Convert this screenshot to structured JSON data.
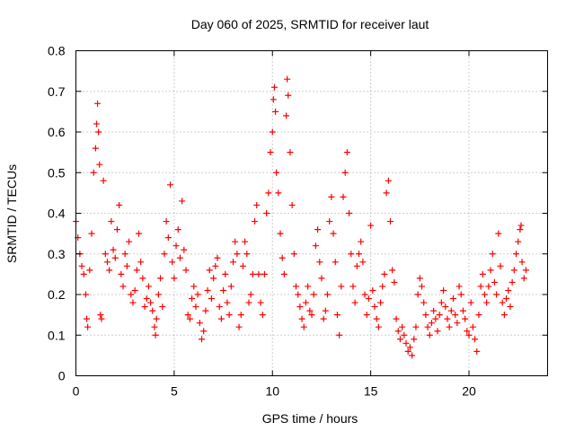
{
  "chart_data": {
    "type": "scatter",
    "title": "Day 060 of 2025, SRMTID for receiver laut",
    "xlabel": "GPS time / hours",
    "ylabel": "SRMTID / TECUs",
    "xlim": [
      0,
      24
    ],
    "ylim": [
      0,
      0.8
    ],
    "xticks": [
      0,
      5,
      10,
      15,
      20
    ],
    "xtick_labels": [
      "0",
      "5",
      "10",
      "15",
      "20"
    ],
    "yticks": [
      0,
      0.1,
      0.2,
      0.3,
      0.4,
      0.5,
      0.6,
      0.7,
      0.8
    ],
    "ytick_labels": [
      "0",
      "0.1",
      "0.2",
      "0.3",
      "0.4",
      "0.5",
      "0.6",
      "0.7",
      "0.8"
    ],
    "grid": true,
    "marker": "+",
    "color": "#ff0000",
    "series": [
      {
        "name": "SRMTID",
        "points": [
          [
            0.0,
            0.38
          ],
          [
            0.1,
            0.34
          ],
          [
            0.2,
            0.3
          ],
          [
            0.3,
            0.27
          ],
          [
            0.4,
            0.25
          ],
          [
            0.5,
            0.2
          ],
          [
            0.55,
            0.14
          ],
          [
            0.6,
            0.12
          ],
          [
            0.7,
            0.26
          ],
          [
            0.8,
            0.35
          ],
          [
            0.9,
            0.5
          ],
          [
            1.0,
            0.56
          ],
          [
            1.05,
            0.62
          ],
          [
            1.1,
            0.67
          ],
          [
            1.15,
            0.6
          ],
          [
            1.2,
            0.52
          ],
          [
            1.25,
            0.15
          ],
          [
            1.3,
            0.14
          ],
          [
            1.4,
            0.48
          ],
          [
            1.5,
            0.3
          ],
          [
            1.6,
            0.28
          ],
          [
            1.7,
            0.26
          ],
          [
            1.8,
            0.38
          ],
          [
            1.9,
            0.31
          ],
          [
            2.0,
            0.29
          ],
          [
            2.1,
            0.36
          ],
          [
            2.2,
            0.42
          ],
          [
            2.3,
            0.25
          ],
          [
            2.4,
            0.22
          ],
          [
            2.5,
            0.3
          ],
          [
            2.6,
            0.27
          ],
          [
            2.7,
            0.33
          ],
          [
            2.8,
            0.2
          ],
          [
            2.9,
            0.18
          ],
          [
            3.0,
            0.21
          ],
          [
            3.1,
            0.26
          ],
          [
            3.2,
            0.35
          ],
          [
            3.3,
            0.28
          ],
          [
            3.4,
            0.24
          ],
          [
            3.5,
            0.17
          ],
          [
            3.6,
            0.19
          ],
          [
            3.7,
            0.22
          ],
          [
            3.8,
            0.18
          ],
          [
            3.9,
            0.16
          ],
          [
            4.0,
            0.12
          ],
          [
            4.05,
            0.1
          ],
          [
            4.1,
            0.14
          ],
          [
            4.2,
            0.2
          ],
          [
            4.3,
            0.24
          ],
          [
            4.4,
            0.17
          ],
          [
            4.5,
            0.3
          ],
          [
            4.6,
            0.38
          ],
          [
            4.7,
            0.34
          ],
          [
            4.8,
            0.47
          ],
          [
            4.9,
            0.28
          ],
          [
            5.0,
            0.24
          ],
          [
            5.1,
            0.32
          ],
          [
            5.2,
            0.36
          ],
          [
            5.3,
            0.29
          ],
          [
            5.4,
            0.43
          ],
          [
            5.5,
            0.31
          ],
          [
            5.6,
            0.26
          ],
          [
            5.7,
            0.15
          ],
          [
            5.8,
            0.14
          ],
          [
            5.9,
            0.19
          ],
          [
            6.0,
            0.22
          ],
          [
            6.1,
            0.17
          ],
          [
            6.2,
            0.2
          ],
          [
            6.3,
            0.13
          ],
          [
            6.4,
            0.09
          ],
          [
            6.5,
            0.11
          ],
          [
            6.6,
            0.16
          ],
          [
            6.7,
            0.21
          ],
          [
            6.8,
            0.26
          ],
          [
            6.9,
            0.19
          ],
          [
            7.0,
            0.24
          ],
          [
            7.1,
            0.27
          ],
          [
            7.2,
            0.29
          ],
          [
            7.3,
            0.17
          ],
          [
            7.4,
            0.14
          ],
          [
            7.5,
            0.21
          ],
          [
            7.6,
            0.25
          ],
          [
            7.7,
            0.18
          ],
          [
            7.8,
            0.15
          ],
          [
            7.9,
            0.22
          ],
          [
            8.0,
            0.28
          ],
          [
            8.1,
            0.33
          ],
          [
            8.2,
            0.3
          ],
          [
            8.3,
            0.12
          ],
          [
            8.4,
            0.15
          ],
          [
            8.5,
            0.27
          ],
          [
            8.6,
            0.33
          ],
          [
            8.7,
            0.3
          ],
          [
            8.8,
            0.18
          ],
          [
            8.9,
            0.2
          ],
          [
            9.0,
            0.25
          ],
          [
            9.1,
            0.38
          ],
          [
            9.2,
            0.42
          ],
          [
            9.3,
            0.25
          ],
          [
            9.4,
            0.18
          ],
          [
            9.5,
            0.15
          ],
          [
            9.6,
            0.25
          ],
          [
            9.7,
            0.4
          ],
          [
            9.8,
            0.45
          ],
          [
            9.9,
            0.55
          ],
          [
            10.0,
            0.6
          ],
          [
            10.05,
            0.68
          ],
          [
            10.1,
            0.71
          ],
          [
            10.15,
            0.65
          ],
          [
            10.2,
            0.5
          ],
          [
            10.3,
            0.45
          ],
          [
            10.4,
            0.35
          ],
          [
            10.5,
            0.29
          ],
          [
            10.6,
            0.25
          ],
          [
            10.7,
            0.64
          ],
          [
            10.75,
            0.73
          ],
          [
            10.8,
            0.69
          ],
          [
            10.9,
            0.55
          ],
          [
            11.0,
            0.42
          ],
          [
            11.1,
            0.3
          ],
          [
            11.2,
            0.22
          ],
          [
            11.3,
            0.2
          ],
          [
            11.4,
            0.17
          ],
          [
            11.5,
            0.14
          ],
          [
            11.6,
            0.12
          ],
          [
            11.7,
            0.18
          ],
          [
            11.8,
            0.22
          ],
          [
            11.9,
            0.16
          ],
          [
            12.0,
            0.15
          ],
          [
            12.1,
            0.2
          ],
          [
            12.2,
            0.32
          ],
          [
            12.3,
            0.36
          ],
          [
            12.4,
            0.28
          ],
          [
            12.5,
            0.24
          ],
          [
            12.6,
            0.14
          ],
          [
            12.7,
            0.16
          ],
          [
            12.8,
            0.2
          ],
          [
            12.9,
            0.38
          ],
          [
            13.0,
            0.44
          ],
          [
            13.1,
            0.35
          ],
          [
            13.2,
            0.28
          ],
          [
            13.3,
            0.15
          ],
          [
            13.4,
            0.1
          ],
          [
            13.5,
            0.22
          ],
          [
            13.6,
            0.44
          ],
          [
            13.7,
            0.5
          ],
          [
            13.8,
            0.55
          ],
          [
            13.9,
            0.4
          ],
          [
            14.0,
            0.3
          ],
          [
            14.1,
            0.22
          ],
          [
            14.2,
            0.18
          ],
          [
            14.3,
            0.27
          ],
          [
            14.4,
            0.3
          ],
          [
            14.5,
            0.33
          ],
          [
            14.6,
            0.28
          ],
          [
            14.7,
            0.2
          ],
          [
            14.8,
            0.15
          ],
          [
            14.9,
            0.19
          ],
          [
            15.0,
            0.37
          ],
          [
            15.1,
            0.21
          ],
          [
            15.2,
            0.17
          ],
          [
            15.3,
            0.14
          ],
          [
            15.4,
            0.12
          ],
          [
            15.5,
            0.18
          ],
          [
            15.6,
            0.22
          ],
          [
            15.7,
            0.25
          ],
          [
            15.8,
            0.45
          ],
          [
            15.9,
            0.48
          ],
          [
            16.0,
            0.38
          ],
          [
            16.1,
            0.26
          ],
          [
            16.2,
            0.23
          ],
          [
            16.3,
            0.14
          ],
          [
            16.4,
            0.11
          ],
          [
            16.5,
            0.09
          ],
          [
            16.6,
            0.12
          ],
          [
            16.7,
            0.1
          ],
          [
            16.8,
            0.08
          ],
          [
            16.9,
            0.06
          ],
          [
            17.0,
            0.07
          ],
          [
            17.1,
            0.05
          ],
          [
            17.2,
            0.09
          ],
          [
            17.3,
            0.12
          ],
          [
            17.4,
            0.2
          ],
          [
            17.5,
            0.24
          ],
          [
            17.6,
            0.22
          ],
          [
            17.7,
            0.18
          ],
          [
            17.8,
            0.15
          ],
          [
            17.9,
            0.12
          ],
          [
            18.0,
            0.1
          ],
          [
            18.1,
            0.13
          ],
          [
            18.2,
            0.16
          ],
          [
            18.3,
            0.14
          ],
          [
            18.4,
            0.11
          ],
          [
            18.5,
            0.15
          ],
          [
            18.6,
            0.18
          ],
          [
            18.7,
            0.21
          ],
          [
            18.8,
            0.17
          ],
          [
            18.9,
            0.14
          ],
          [
            19.0,
            0.12
          ],
          [
            19.1,
            0.16
          ],
          [
            19.2,
            0.19
          ],
          [
            19.3,
            0.15
          ],
          [
            19.4,
            0.13
          ],
          [
            19.5,
            0.22
          ],
          [
            19.6,
            0.2
          ],
          [
            19.7,
            0.16
          ],
          [
            19.8,
            0.14
          ],
          [
            19.9,
            0.11
          ],
          [
            20.0,
            0.1
          ],
          [
            20.1,
            0.18
          ],
          [
            20.2,
            0.12
          ],
          [
            20.3,
            0.09
          ],
          [
            20.4,
            0.06
          ],
          [
            20.5,
            0.15
          ],
          [
            20.6,
            0.22
          ],
          [
            20.7,
            0.25
          ],
          [
            20.8,
            0.2
          ],
          [
            20.9,
            0.18
          ],
          [
            21.0,
            0.22
          ],
          [
            21.1,
            0.26
          ],
          [
            21.2,
            0.3
          ],
          [
            21.3,
            0.23
          ],
          [
            21.4,
            0.2
          ],
          [
            21.5,
            0.35
          ],
          [
            21.6,
            0.27
          ],
          [
            21.7,
            0.18
          ],
          [
            21.8,
            0.15
          ],
          [
            21.9,
            0.19
          ],
          [
            22.0,
            0.21
          ],
          [
            22.1,
            0.17
          ],
          [
            22.2,
            0.23
          ],
          [
            22.3,
            0.26
          ],
          [
            22.4,
            0.3
          ],
          [
            22.5,
            0.33
          ],
          [
            22.6,
            0.36
          ],
          [
            22.65,
            0.37
          ],
          [
            22.7,
            0.28
          ],
          [
            22.8,
            0.24
          ],
          [
            22.9,
            0.26
          ]
        ]
      }
    ]
  }
}
